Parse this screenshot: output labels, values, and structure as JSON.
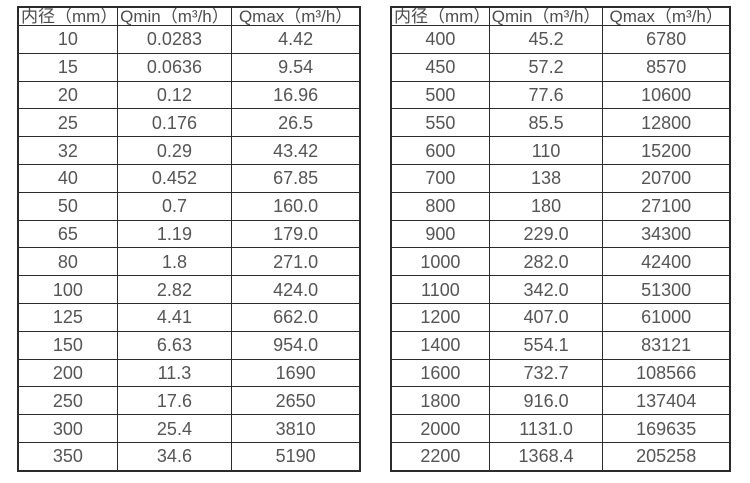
{
  "colors": {
    "background": "#ffffff",
    "border": "#2b2b2b",
    "text": "#555555"
  },
  "tables": [
    {
      "name": "flow-spec-table-small-diameters",
      "headers": [
        "内径（mm）",
        "Qmin（m³/h）",
        "Qmax（m³/h）"
      ],
      "rows": [
        [
          "10",
          "0.0283",
          "4.42"
        ],
        [
          "15",
          "0.0636",
          "9.54"
        ],
        [
          "20",
          "0.12",
          "16.96"
        ],
        [
          "25",
          "0.176",
          "26.5"
        ],
        [
          "32",
          "0.29",
          "43.42"
        ],
        [
          "40",
          "0.452",
          "67.85"
        ],
        [
          "50",
          "0.7",
          "160.0"
        ],
        [
          "65",
          "1.19",
          "179.0"
        ],
        [
          "80",
          "1.8",
          "271.0"
        ],
        [
          "100",
          "2.82",
          "424.0"
        ],
        [
          "125",
          "4.41",
          "662.0"
        ],
        [
          "150",
          "6.63",
          "954.0"
        ],
        [
          "200",
          "11.3",
          "1690"
        ],
        [
          "250",
          "17.6",
          "2650"
        ],
        [
          "300",
          "25.4",
          "3810"
        ],
        [
          "350",
          "34.6",
          "5190"
        ]
      ]
    },
    {
      "name": "flow-spec-table-large-diameters",
      "headers": [
        "内径（mm）",
        "Qmin（m³/h）",
        "Qmax（m³/h）"
      ],
      "rows": [
        [
          "400",
          "45.2",
          "6780"
        ],
        [
          "450",
          "57.2",
          "8570"
        ],
        [
          "500",
          "77.6",
          "10600"
        ],
        [
          "550",
          "85.5",
          "12800"
        ],
        [
          "600",
          "110",
          "15200"
        ],
        [
          "700",
          "138",
          "20700"
        ],
        [
          "800",
          "180",
          "27100"
        ],
        [
          "900",
          "229.0",
          "34300"
        ],
        [
          "1000",
          "282.0",
          "42400"
        ],
        [
          "1100",
          "342.0",
          "51300"
        ],
        [
          "1200",
          "407.0",
          "61000"
        ],
        [
          "1400",
          "554.1",
          "83121"
        ],
        [
          "1600",
          "732.7",
          "108566"
        ],
        [
          "1800",
          "916.0",
          "137404"
        ],
        [
          "2000",
          "1131.0",
          "169635"
        ],
        [
          "2200",
          "1368.4",
          "205258"
        ]
      ]
    }
  ]
}
